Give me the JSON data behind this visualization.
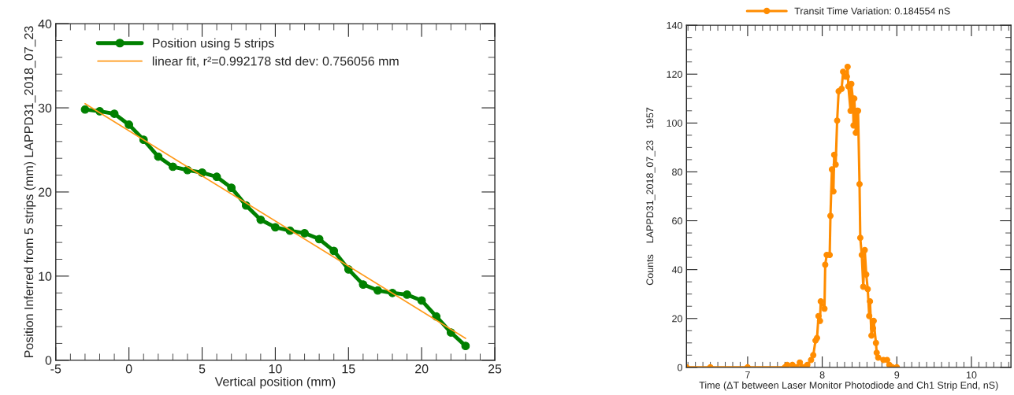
{
  "chart_data": [
    {
      "type": "line",
      "xlabel": "Vertical position (mm)",
      "ylabel": "Position Inferred from 5 strips (mm) LAPPD31_2018_07_23",
      "xlim": [
        -5,
        25
      ],
      "xticks": [
        -5,
        0,
        5,
        10,
        15,
        20,
        25
      ],
      "ylim": [
        0,
        40
      ],
      "yticks": [
        0,
        10,
        20,
        30,
        40
      ],
      "grid": false,
      "legend": "top left",
      "series": [
        {
          "name": "Position using 5 strips",
          "color": "#008000",
          "marker": "circle",
          "x": [
            -3,
            -2,
            -1,
            0,
            1,
            2,
            3,
            4,
            5,
            6,
            7,
            8,
            9,
            10,
            11,
            12,
            13,
            14,
            15,
            16,
            17,
            18,
            19,
            20,
            21,
            22,
            23
          ],
          "values": [
            29.8,
            29.6,
            29.3,
            28.0,
            26.2,
            24.2,
            23.0,
            22.6,
            22.3,
            21.8,
            20.5,
            18.4,
            16.7,
            15.8,
            15.4,
            15.1,
            14.4,
            13.0,
            10.8,
            9.0,
            8.3,
            8.0,
            7.8,
            7.1,
            5.2,
            3.3,
            1.7
          ]
        },
        {
          "name": "linear fit, r²=0.992178 std dev: 0.756056 mm",
          "color": "#ff9a1a",
          "marker": "none",
          "x": [
            -3,
            23
          ],
          "values": [
            30.5,
            2.6
          ]
        }
      ]
    },
    {
      "type": "line",
      "xlabel": "Time (ΔT between Laser Monitor Photodiode and Ch1 Strip End, nS)",
      "ylabel": "Counts    LAPPD31_2018_07_23    1957",
      "xlim": [
        6.18,
        10.53
      ],
      "xticks": [
        7,
        8,
        9,
        10
      ],
      "ylim": [
        0,
        140
      ],
      "yticks": [
        0,
        20,
        40,
        60,
        80,
        100,
        120,
        140
      ],
      "grid": false,
      "legend": "top",
      "series": [
        {
          "name": "Transit Time Variation: 0.184554 nS",
          "color": "#ff8c00",
          "marker": "circle",
          "x": [
            6.18,
            6.5,
            7.0,
            7.5,
            7.53,
            7.6,
            7.65,
            7.7,
            7.73,
            7.75,
            7.8,
            7.85,
            7.88,
            7.91,
            7.93,
            7.95,
            7.97,
            7.98,
            8.03,
            8.04,
            8.06,
            8.1,
            8.11,
            8.13,
            8.15,
            8.16,
            8.18,
            8.2,
            8.22,
            8.26,
            8.28,
            8.31,
            8.33,
            8.34,
            8.35,
            8.38,
            8.39,
            8.41,
            8.42,
            8.43,
            8.45,
            8.47,
            8.48,
            8.5,
            8.51,
            8.53,
            8.55,
            8.57,
            8.59,
            8.61,
            8.63,
            8.64,
            8.66,
            8.68,
            8.69,
            8.72,
            8.73,
            8.75,
            8.82,
            8.87,
            8.9,
            8.94,
            9.0
          ],
          "values": [
            0,
            0,
            0,
            0,
            1,
            1,
            0,
            2,
            0,
            0,
            1,
            3,
            5,
            11,
            12,
            21,
            19,
            27,
            24,
            42,
            46,
            46,
            62,
            81,
            72,
            87,
            83,
            101,
            113,
            114,
            121,
            119,
            119,
            123,
            115,
            105,
            116,
            110,
            99,
            110,
            96,
            105,
            105,
            75,
            53,
            46,
            33,
            48,
            38,
            32,
            21,
            27,
            13,
            16,
            19,
            10,
            6,
            4,
            3,
            3,
            1,
            0,
            0
          ]
        }
      ]
    }
  ]
}
